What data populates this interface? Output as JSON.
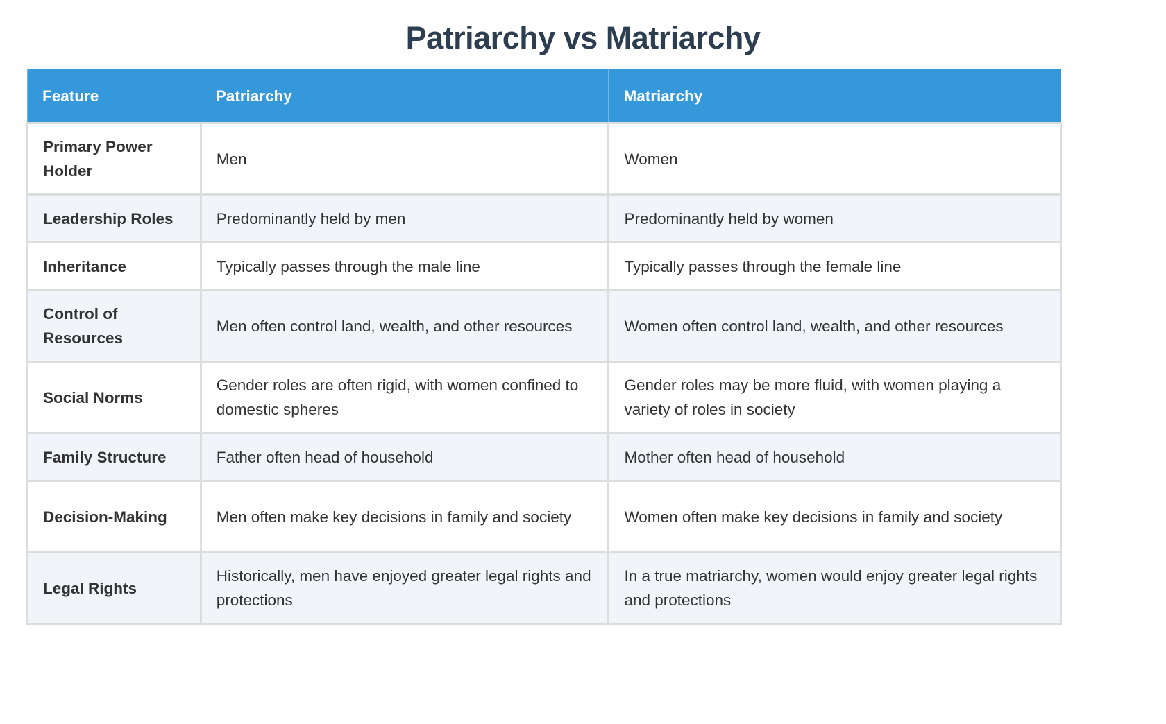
{
  "title": "Patriarchy vs Matriarchy",
  "table": {
    "headers": [
      "Feature",
      "Patriarchy",
      "Matriarchy"
    ],
    "colors": {
      "header_bg": "#3498db",
      "header_text": "#ffffff",
      "title_text": "#2c3e50",
      "alt_row_bg": "#f1f4f9",
      "border": "#dddddd"
    },
    "rows": [
      {
        "feature": "Primary Power Holder",
        "patriarchy": "Men",
        "matriarchy": "Women"
      },
      {
        "feature": "Leadership Roles",
        "patriarchy": "Predominantly held by men",
        "matriarchy": "Predominantly held by women"
      },
      {
        "feature": "Inheritance",
        "patriarchy": "Typically passes through the male line",
        "matriarchy": "Typically passes through the female line"
      },
      {
        "feature": "Control of Resources",
        "patriarchy": "Men often control land, wealth, and other resources",
        "matriarchy": "Women often control land, wealth, and other resources"
      },
      {
        "feature": "Social Norms",
        "patriarchy": "Gender roles are often rigid, with women confined to domestic spheres",
        "matriarchy": "Gender roles may be more fluid, with women playing a variety of roles in society"
      },
      {
        "feature": "Family Structure",
        "patriarchy": "Father often head of household",
        "matriarchy": "Mother often head of household"
      },
      {
        "feature": "Decision-Making",
        "patriarchy": "Men often make key decisions in family and society",
        "matriarchy": "Women often make key decisions in family and society"
      },
      {
        "feature": "Legal Rights",
        "patriarchy": "Historically, men have enjoyed greater legal rights and protections",
        "matriarchy": "In a true matriarchy, women would enjoy greater legal rights and protections"
      }
    ]
  }
}
